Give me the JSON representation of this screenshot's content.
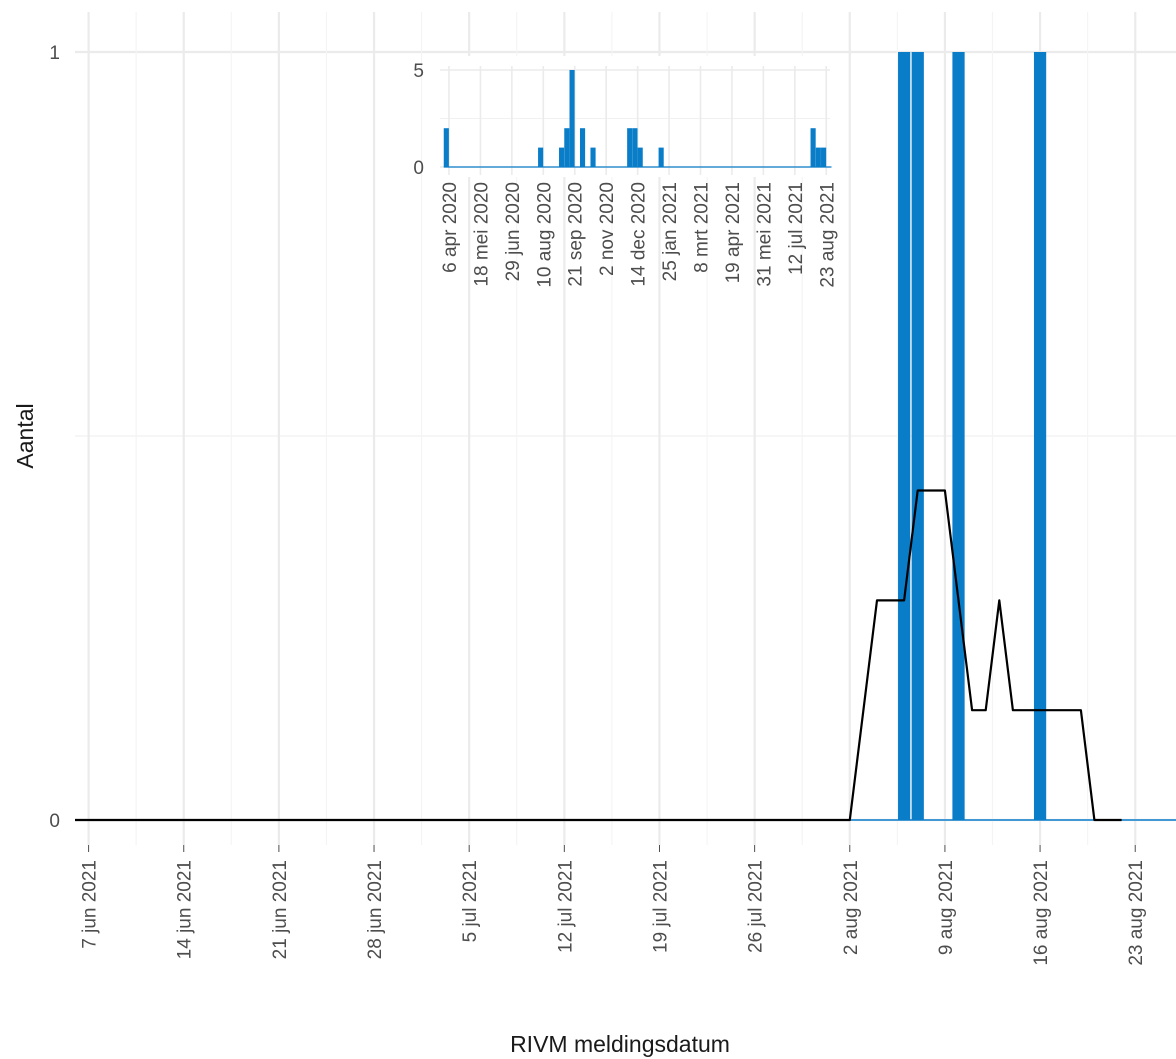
{
  "chart_data": {
    "type": "bar",
    "xlabel": "RIVM meldingsdatum",
    "ylabel": "Aantal",
    "x_range": [
      "2021-06-06",
      "2021-08-26"
    ],
    "ylim": [
      0,
      1
    ],
    "grid": true,
    "y_ticks": [
      0,
      1
    ],
    "x_ticks": [
      {
        "date": "2021-06-07",
        "label": "7 jun 2021"
      },
      {
        "date": "2021-06-14",
        "label": "14 jun 2021"
      },
      {
        "date": "2021-06-21",
        "label": "21 jun 2021"
      },
      {
        "date": "2021-06-28",
        "label": "28 jun 2021"
      },
      {
        "date": "2021-07-05",
        "label": "5 jul 2021"
      },
      {
        "date": "2021-07-12",
        "label": "12 jul 2021"
      },
      {
        "date": "2021-07-19",
        "label": "19 jul 2021"
      },
      {
        "date": "2021-07-26",
        "label": "26 jul 2021"
      },
      {
        "date": "2021-08-02",
        "label": "2 aug 2021"
      },
      {
        "date": "2021-08-09",
        "label": "9 aug 2021"
      },
      {
        "date": "2021-08-16",
        "label": "16 aug 2021"
      },
      {
        "date": "2021-08-23",
        "label": "23 aug 2021"
      }
    ],
    "bars": [
      {
        "date": "2021-08-06",
        "value": 1
      },
      {
        "date": "2021-08-07",
        "value": 1
      },
      {
        "date": "2021-08-10",
        "value": 1
      },
      {
        "date": "2021-08-16",
        "value": 1
      }
    ],
    "line": [
      {
        "date": "2021-06-06",
        "value": 0
      },
      {
        "date": "2021-08-02",
        "value": 0
      },
      {
        "date": "2021-08-04",
        "value": 0.286
      },
      {
        "date": "2021-08-06",
        "value": 0.286
      },
      {
        "date": "2021-08-07",
        "value": 0.429
      },
      {
        "date": "2021-08-09",
        "value": 0.429
      },
      {
        "date": "2021-08-11",
        "value": 0.143
      },
      {
        "date": "2021-08-12",
        "value": 0.143
      },
      {
        "date": "2021-08-13",
        "value": 0.286
      },
      {
        "date": "2021-08-14",
        "value": 0.143
      },
      {
        "date": "2021-08-19",
        "value": 0.143
      },
      {
        "date": "2021-08-20",
        "value": 0
      },
      {
        "date": "2021-08-22",
        "value": 0
      }
    ],
    "bar_color": "#0a7dc9",
    "line_color": "#000000",
    "inset": {
      "type": "bar",
      "x_range": [
        "2020-03-25",
        "2021-08-28"
      ],
      "ylim": [
        0,
        5
      ],
      "y_ticks": [
        0,
        5
      ],
      "x_ticks": [
        {
          "date": "2020-04-06",
          "label": "6 apr 2020"
        },
        {
          "date": "2020-05-18",
          "label": "18 mei 2020"
        },
        {
          "date": "2020-06-29",
          "label": "29 jun 2020"
        },
        {
          "date": "2020-08-10",
          "label": "10 aug 2020"
        },
        {
          "date": "2020-09-21",
          "label": "21 sep 2020"
        },
        {
          "date": "2020-11-02",
          "label": "2 nov 2020"
        },
        {
          "date": "2020-12-14",
          "label": "14 dec 2020"
        },
        {
          "date": "2021-01-25",
          "label": "25 jan 2021"
        },
        {
          "date": "2021-03-08",
          "label": "8 mrt 2021"
        },
        {
          "date": "2021-04-19",
          "label": "19 apr 2021"
        },
        {
          "date": "2021-05-31",
          "label": "31 mei 2021"
        },
        {
          "date": "2021-07-12",
          "label": "12 jul 2021"
        },
        {
          "date": "2021-08-23",
          "label": "23 aug 2021"
        }
      ],
      "week_starts": [
        "2020-03-30",
        "2021-08-23"
      ],
      "bars": [
        {
          "week": "2020-03-30",
          "value": 2
        },
        {
          "week": "2020-08-03",
          "value": 1
        },
        {
          "week": "2020-08-31",
          "value": 1
        },
        {
          "week": "2020-09-07",
          "value": 2
        },
        {
          "week": "2020-09-14",
          "value": 5
        },
        {
          "week": "2020-09-28",
          "value": 2
        },
        {
          "week": "2020-10-12",
          "value": 1
        },
        {
          "week": "2020-11-30",
          "value": 2
        },
        {
          "week": "2020-12-07",
          "value": 2
        },
        {
          "week": "2020-12-14",
          "value": 1
        },
        {
          "week": "2021-01-11",
          "value": 1
        },
        {
          "week": "2021-08-02",
          "value": 2
        },
        {
          "week": "2021-08-09",
          "value": 1
        },
        {
          "week": "2021-08-16",
          "value": 1
        }
      ]
    }
  }
}
